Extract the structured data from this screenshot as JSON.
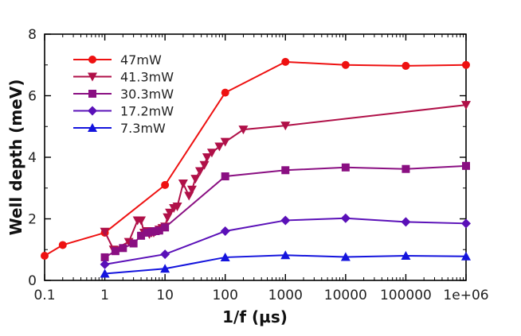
{
  "chart_data": {
    "type": "line",
    "xlabel": "1/f (µs)",
    "ylabel": "Well depth (meV)",
    "x_scale": "log",
    "xlim": [
      0.1,
      1000000
    ],
    "ylim": [
      0,
      8
    ],
    "x_ticks": [
      {
        "value": 0.1,
        "label": "0.1"
      },
      {
        "value": 1,
        "label": "1"
      },
      {
        "value": 10,
        "label": "10"
      },
      {
        "value": 100,
        "label": "100"
      },
      {
        "value": 1000,
        "label": "1000"
      },
      {
        "value": 10000,
        "label": "10000"
      },
      {
        "value": 100000,
        "label": "100000"
      },
      {
        "value": 1000000,
        "label": "1e+06"
      }
    ],
    "y_ticks": [
      {
        "value": 0,
        "label": "0"
      },
      {
        "value": 2,
        "label": "2"
      },
      {
        "value": 4,
        "label": "4"
      },
      {
        "value": 6,
        "label": "6"
      },
      {
        "value": 8,
        "label": "8"
      }
    ],
    "grid": false,
    "legend_position": "top-left",
    "series": [
      {
        "name": "47mW",
        "color": "#ee1111",
        "marker": "circle",
        "points": [
          [
            0.1,
            0.8
          ],
          [
            0.2,
            1.15
          ],
          [
            1,
            1.55
          ],
          [
            10,
            3.1
          ],
          [
            100,
            6.1
          ],
          [
            1000,
            7.1
          ],
          [
            10000,
            7.0
          ],
          [
            100000,
            6.97
          ],
          [
            1000000,
            7.0
          ]
        ]
      },
      {
        "name": "41.3mW",
        "color": "#b01048",
        "marker": "triangle-down",
        "points": [
          [
            1,
            1.58
          ],
          [
            1.4,
            1.0
          ],
          [
            2.5,
            1.25
          ],
          [
            3.5,
            1.95
          ],
          [
            4,
            1.95
          ],
          [
            4.5,
            1.55
          ],
          [
            5,
            1.6
          ],
          [
            5.5,
            1.5
          ],
          [
            6,
            1.55
          ],
          [
            6.5,
            1.55
          ],
          [
            7,
            1.6
          ],
          [
            8,
            1.65
          ],
          [
            9,
            1.7
          ],
          [
            10,
            1.75
          ],
          [
            11,
            2.05
          ],
          [
            12,
            2.2
          ],
          [
            14,
            2.35
          ],
          [
            16,
            2.4
          ],
          [
            20,
            3.15
          ],
          [
            25,
            2.75
          ],
          [
            28,
            2.95
          ],
          [
            32,
            3.3
          ],
          [
            38,
            3.55
          ],
          [
            45,
            3.75
          ],
          [
            50,
            4.0
          ],
          [
            60,
            4.15
          ],
          [
            80,
            4.35
          ],
          [
            100,
            4.5
          ],
          [
            200,
            4.9
          ],
          [
            1000,
            5.03
          ],
          [
            1000000,
            5.7
          ]
        ]
      },
      {
        "name": "30.3mW",
        "color": "#8a0f82",
        "marker": "square",
        "points": [
          [
            1,
            0.75
          ],
          [
            1.5,
            0.95
          ],
          [
            2,
            1.05
          ],
          [
            3,
            1.2
          ],
          [
            4,
            1.45
          ],
          [
            5,
            1.55
          ],
          [
            6,
            1.58
          ],
          [
            7,
            1.6
          ],
          [
            8,
            1.62
          ],
          [
            10,
            1.72
          ],
          [
            100,
            3.38
          ],
          [
            1000,
            3.58
          ],
          [
            10000,
            3.67
          ],
          [
            100000,
            3.62
          ],
          [
            1000000,
            3.72
          ]
        ]
      },
      {
        "name": "17.2mW",
        "color": "#5a10b8",
        "marker": "diamond",
        "points": [
          [
            1,
            0.52
          ],
          [
            10,
            0.85
          ],
          [
            100,
            1.6
          ],
          [
            1000,
            1.95
          ],
          [
            10000,
            2.02
          ],
          [
            100000,
            1.9
          ],
          [
            1000000,
            1.85
          ]
        ]
      },
      {
        "name": "7.3mW",
        "color": "#1414dd",
        "marker": "triangle-up",
        "points": [
          [
            1,
            0.22
          ],
          [
            10,
            0.38
          ],
          [
            100,
            0.75
          ],
          [
            1000,
            0.82
          ],
          [
            10000,
            0.76
          ],
          [
            100000,
            0.8
          ],
          [
            1000000,
            0.78
          ]
        ]
      }
    ]
  }
}
